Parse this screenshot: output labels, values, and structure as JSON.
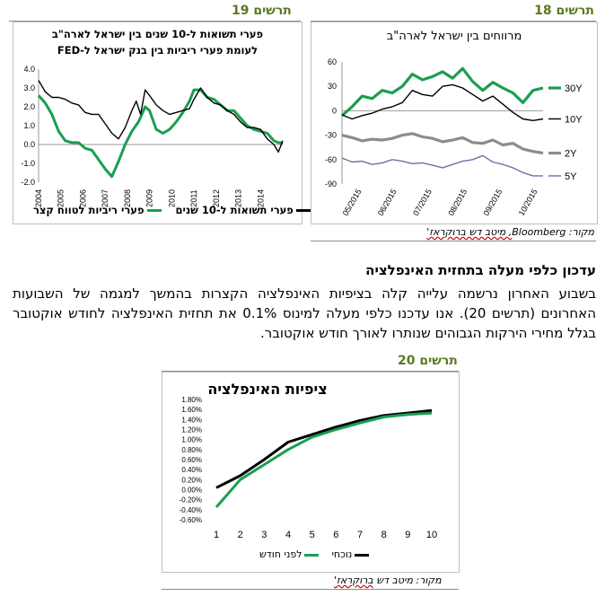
{
  "colors": {
    "green": "#1a9e50",
    "black": "#000000",
    "gray": "#8c8c8c",
    "purple": "#7b6aa6",
    "accent": "#5a7a1e"
  },
  "chart19": {
    "number_label": "תרשים 19",
    "title_line1": "פערי תשואות ל-10 שנים בין ישראל לארה\"ב",
    "title_line2": "לעומת פערי ריביות בין בנק ישראל ל-FED",
    "legend_green": "פערי ריביות לטווח קצר",
    "legend_black": "פערי תשואות ל-10 שנים"
  },
  "chart18": {
    "number_label": "תרשים 18",
    "title": "מרווחים בין ישראל לארה\"ב"
  },
  "chart20": {
    "number_label": "תרשים 20",
    "title": "ציפיות האינפלציה",
    "legend_green": "לפני חודש",
    "legend_black": "נוכחי"
  },
  "source_top": {
    "prefix": "מקור: ",
    "bloomberg": "Bloomberg",
    "rest": ", מיטב דש ברוקראז'"
  },
  "source_bottom": {
    "text": "מקור: מיטב דש ",
    "u": "ברוקראז'"
  },
  "article": {
    "heading": "עדכון כלפי מעלה בתחזית האינפלציה",
    "body": "בשבוע האחרון נרשמה עלייה קלה בציפיות האינפלציה הקצרות בהמשך למגמה של השבועות האחרונים (תרשים 20). אנו עדכנו כלפי מעלה למינוס 0.1% את תחזית האינפלציה לחודש אוקטובר בגלל מחירי הירקות הגבוהים שנותרו לאורך חודש אוקטובר."
  },
  "chart_data": [
    {
      "type": "line",
      "title": "פערי תשואות ל-10 שנים בין ישראל לארה\"ב לעומת פערי ריביות בין בנק ישראל ל-FED",
      "ylim": [
        -2.0,
        4.0
      ],
      "yticks": [
        "4.0",
        "3.0",
        "2.0",
        "1.0",
        "0.0",
        "-1.0",
        "-2.0"
      ],
      "xticks": [
        "2004",
        "2005",
        "2006",
        "2007",
        "2008",
        "2009",
        "2010",
        "2011",
        "2012",
        "2013",
        "2014"
      ],
      "legend": "bottom",
      "series": [
        {
          "name": "פערי תשואות ל-10 שנים",
          "color": "#000000",
          "x": [
            2004.0,
            2004.3,
            2004.6,
            2004.9,
            2005.2,
            2005.5,
            2005.8,
            2006.1,
            2006.4,
            2006.7,
            2007.0,
            2007.3,
            2007.6,
            2007.9,
            2008.2,
            2008.4,
            2008.6,
            2008.8,
            2009.0,
            2009.3,
            2009.6,
            2009.9,
            2010.2,
            2010.5,
            2010.8,
            2011.0,
            2011.3,
            2011.6,
            2011.9,
            2012.2,
            2012.5,
            2012.8,
            2013.1,
            2013.4,
            2013.7,
            2014.0,
            2014.3,
            2014.6,
            2014.8,
            2015.0
          ],
          "values": [
            3.4,
            2.8,
            2.5,
            2.5,
            2.4,
            2.2,
            2.1,
            1.7,
            1.6,
            1.6,
            1.1,
            0.6,
            0.3,
            0.9,
            1.8,
            2.3,
            1.6,
            2.9,
            2.6,
            2.1,
            1.8,
            1.6,
            1.7,
            1.8,
            1.9,
            2.4,
            3.0,
            2.5,
            2.2,
            2.1,
            1.8,
            1.6,
            1.2,
            0.9,
            0.9,
            0.8,
            0.3,
            0.0,
            -0.4,
            0.2
          ]
        },
        {
          "name": "פערי ריביות לטווח קצר",
          "color": "#1a9e50",
          "x": [
            2004.0,
            2004.3,
            2004.6,
            2004.9,
            2005.2,
            2005.5,
            2005.8,
            2006.1,
            2006.4,
            2006.7,
            2007.0,
            2007.3,
            2007.6,
            2007.9,
            2008.2,
            2008.5,
            2008.8,
            2009.0,
            2009.3,
            2009.6,
            2009.9,
            2010.2,
            2010.5,
            2010.8,
            2011.0,
            2011.3,
            2011.6,
            2011.9,
            2012.2,
            2012.5,
            2012.8,
            2013.1,
            2013.4,
            2013.7,
            2014.0,
            2014.3,
            2014.6,
            2014.8,
            2015.0
          ],
          "values": [
            2.6,
            2.2,
            1.6,
            0.7,
            0.2,
            0.1,
            0.1,
            -0.2,
            -0.3,
            -0.8,
            -1.3,
            -1.7,
            -0.9,
            0.0,
            0.7,
            1.2,
            2.0,
            1.8,
            0.8,
            0.6,
            0.8,
            1.2,
            1.7,
            2.3,
            2.9,
            2.9,
            2.5,
            2.4,
            2.1,
            1.8,
            1.8,
            1.4,
            1.0,
            0.8,
            0.7,
            0.6,
            0.2,
            0.1,
            0.1
          ]
        }
      ]
    },
    {
      "type": "line",
      "title": "מרווחים בין ישראל לארה\"ב",
      "ylim": [
        -90,
        60
      ],
      "yticks": [
        "60",
        "30",
        "0",
        "-30",
        "-60",
        "-90"
      ],
      "xticks": [
        "05/2015",
        "06/2015",
        "07/2015",
        "08/2015",
        "09/2015",
        "10/2015"
      ],
      "legend": "right",
      "series": [
        {
          "name": "30Y",
          "color": "#1a9e50",
          "x": [
            0,
            0.3,
            0.6,
            0.9,
            1.2,
            1.5,
            1.8,
            2.1,
            2.4,
            2.7,
            3.0,
            3.3,
            3.6,
            3.9,
            4.2,
            4.5,
            4.8,
            5.1,
            5.4,
            5.7,
            6.0
          ],
          "values": [
            -6,
            5,
            18,
            15,
            25,
            22,
            30,
            45,
            38,
            42,
            48,
            40,
            52,
            36,
            25,
            35,
            28,
            22,
            10,
            25,
            28
          ]
        },
        {
          "name": "10Y",
          "color": "#000000",
          "x": [
            0,
            0.3,
            0.6,
            0.9,
            1.2,
            1.5,
            1.8,
            2.1,
            2.4,
            2.7,
            3.0,
            3.3,
            3.6,
            3.9,
            4.2,
            4.5,
            4.8,
            5.1,
            5.4,
            5.7,
            6.0
          ],
          "values": [
            -5,
            -10,
            -6,
            -3,
            2,
            5,
            10,
            25,
            20,
            18,
            30,
            32,
            28,
            20,
            12,
            18,
            8,
            -2,
            -10,
            -12,
            -10
          ]
        },
        {
          "name": "2Y",
          "color": "#8c8c8c",
          "x": [
            0,
            0.3,
            0.6,
            0.9,
            1.2,
            1.5,
            1.8,
            2.1,
            2.4,
            2.7,
            3.0,
            3.3,
            3.6,
            3.9,
            4.2,
            4.5,
            4.8,
            5.1,
            5.4,
            5.7,
            6.0
          ],
          "values": [
            -30,
            -33,
            -37,
            -35,
            -36,
            -34,
            -30,
            -28,
            -32,
            -34,
            -38,
            -36,
            -33,
            -39,
            -40,
            -36,
            -42,
            -40,
            -47,
            -50,
            -52
          ]
        },
        {
          "name": "5Y",
          "color": "#7b6aa6",
          "x": [
            0,
            0.3,
            0.6,
            0.9,
            1.2,
            1.5,
            1.8,
            2.1,
            2.4,
            2.7,
            3.0,
            3.3,
            3.6,
            3.9,
            4.2,
            4.5,
            4.8,
            5.1,
            5.4,
            5.7,
            6.0
          ],
          "values": [
            -58,
            -63,
            -62,
            -66,
            -64,
            -60,
            -62,
            -65,
            -64,
            -67,
            -70,
            -66,
            -62,
            -60,
            -55,
            -63,
            -66,
            -70,
            -76,
            -80,
            -80
          ]
        }
      ]
    },
    {
      "type": "line",
      "title": "ציפיות האינפלציה",
      "ylim": [
        -0.6,
        1.8
      ],
      "yticks": [
        "1.80%",
        "1.60%",
        "1.40%",
        "1.20%",
        "1.00%",
        "0.80%",
        "0.60%",
        "0.40%",
        "0.20%",
        "0.00%",
        "-0.20%",
        "-0.40%",
        "-0.60%"
      ],
      "categories": [
        "1",
        "2",
        "3",
        "4",
        "5",
        "6",
        "7",
        "8",
        "9",
        "10"
      ],
      "legend": "bottom",
      "series": [
        {
          "name": "נוכחי",
          "color": "#000000",
          "values": [
            0.04,
            0.28,
            0.6,
            0.95,
            1.1,
            1.25,
            1.38,
            1.48,
            1.53,
            1.58
          ]
        },
        {
          "name": "לפני חודש",
          "color": "#1a9e50",
          "values": [
            -0.35,
            0.2,
            0.5,
            0.8,
            1.05,
            1.2,
            1.33,
            1.45,
            1.5,
            1.53
          ]
        }
      ]
    }
  ]
}
